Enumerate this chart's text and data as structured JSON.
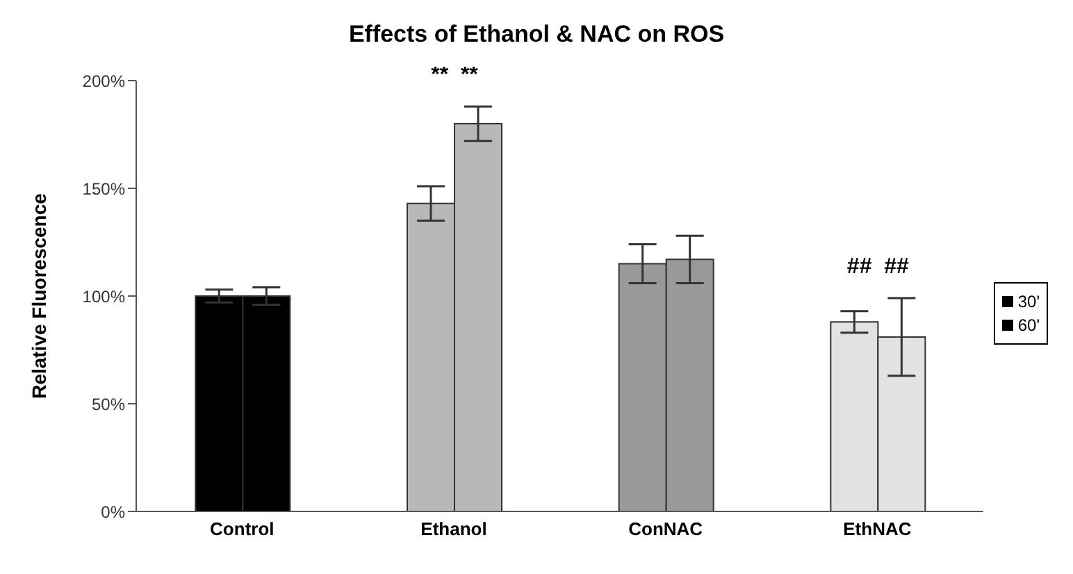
{
  "chart_data": {
    "type": "bar",
    "title": "Effects of Ethanol & NAC on ROS",
    "ylabel": "Relative Fluorescence",
    "categories": [
      "Control",
      "Ethanol",
      "ConNAC",
      "EthNAC"
    ],
    "series": [
      {
        "name": "30'",
        "color": "#000000",
        "colors": [
          "#000000",
          "#b8b8b8",
          "#999999",
          "#e2e2e2"
        ],
        "values": [
          100,
          143,
          115,
          88
        ],
        "errors": [
          3,
          8,
          9,
          5
        ]
      },
      {
        "name": "60'",
        "color": "#000000",
        "colors": [
          "#000000",
          "#b8b8b8",
          "#999999",
          "#e2e2e2"
        ],
        "values": [
          100,
          180,
          117,
          81
        ],
        "errors": [
          4,
          8,
          11,
          18
        ]
      }
    ],
    "ylim": [
      0,
      200
    ],
    "yticks": [
      {
        "value": 0,
        "label": "0%"
      },
      {
        "value": 50,
        "label": "50%"
      },
      {
        "value": 100,
        "label": "100%"
      },
      {
        "value": 150,
        "label": "150%"
      },
      {
        "value": 200,
        "label": "200%"
      }
    ],
    "annotations": [
      "**  **",
      "##  ##"
    ],
    "grid": false,
    "legend": "right"
  }
}
